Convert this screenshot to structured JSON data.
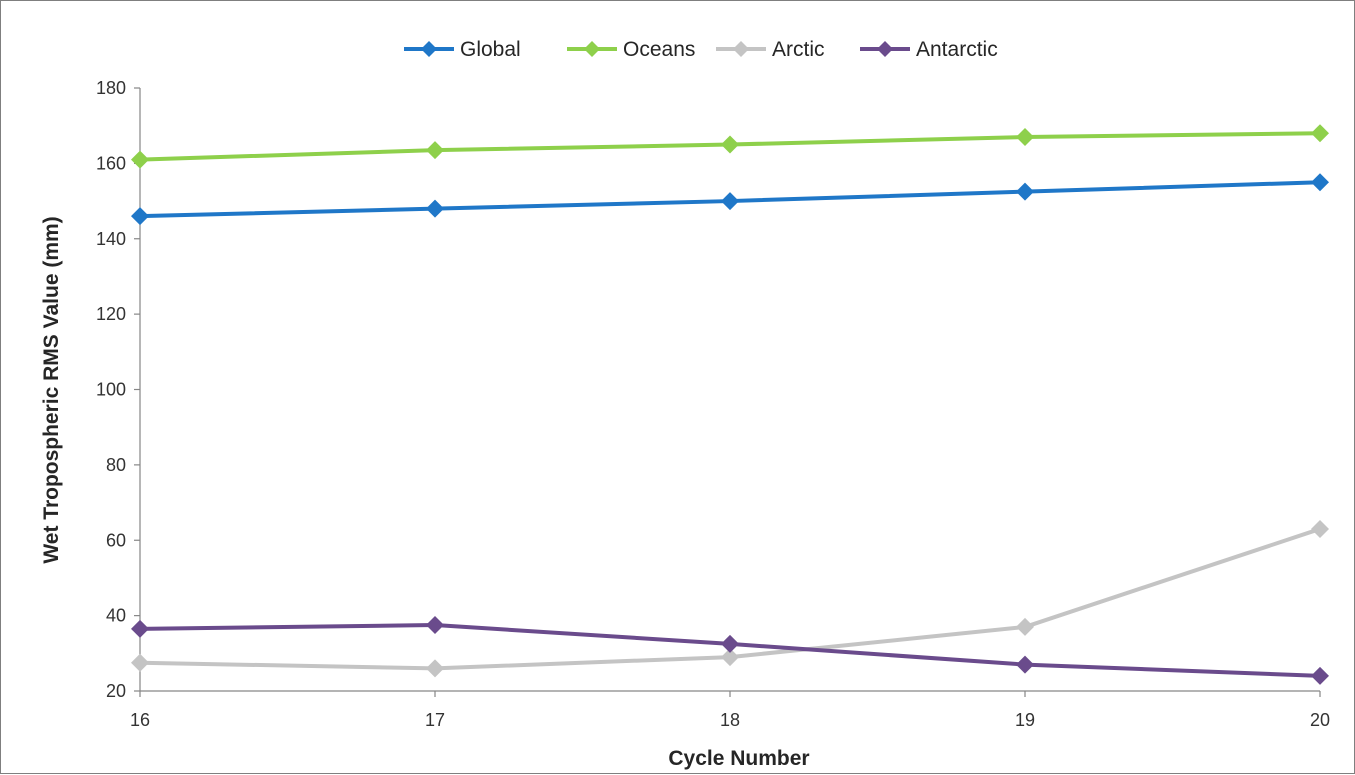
{
  "chart_data": {
    "type": "line",
    "title": "",
    "xlabel": "Cycle Number",
    "ylabel": "Wet Tropospheric RMS Value (mm)",
    "x": [
      16,
      17,
      18,
      19,
      20
    ],
    "xlim": [
      16,
      20
    ],
    "ylim": [
      20,
      180
    ],
    "yticks": [
      20,
      40,
      60,
      80,
      100,
      120,
      140,
      160,
      180
    ],
    "grid": false,
    "legend_position": "top",
    "series": [
      {
        "name": "Global",
        "color": "#1f77c8",
        "values": [
          146,
          148,
          150,
          152.5,
          155
        ]
      },
      {
        "name": "Oceans",
        "color": "#8ed04b",
        "values": [
          161,
          163.5,
          165,
          167,
          168
        ]
      },
      {
        "name": "Arctic",
        "color": "#c4c4c4",
        "values": [
          27.5,
          26,
          29,
          37,
          63
        ]
      },
      {
        "name": "Antarctic",
        "color": "#6a4b8c",
        "values": [
          36.5,
          37.5,
          32.5,
          27,
          24
        ]
      }
    ]
  }
}
